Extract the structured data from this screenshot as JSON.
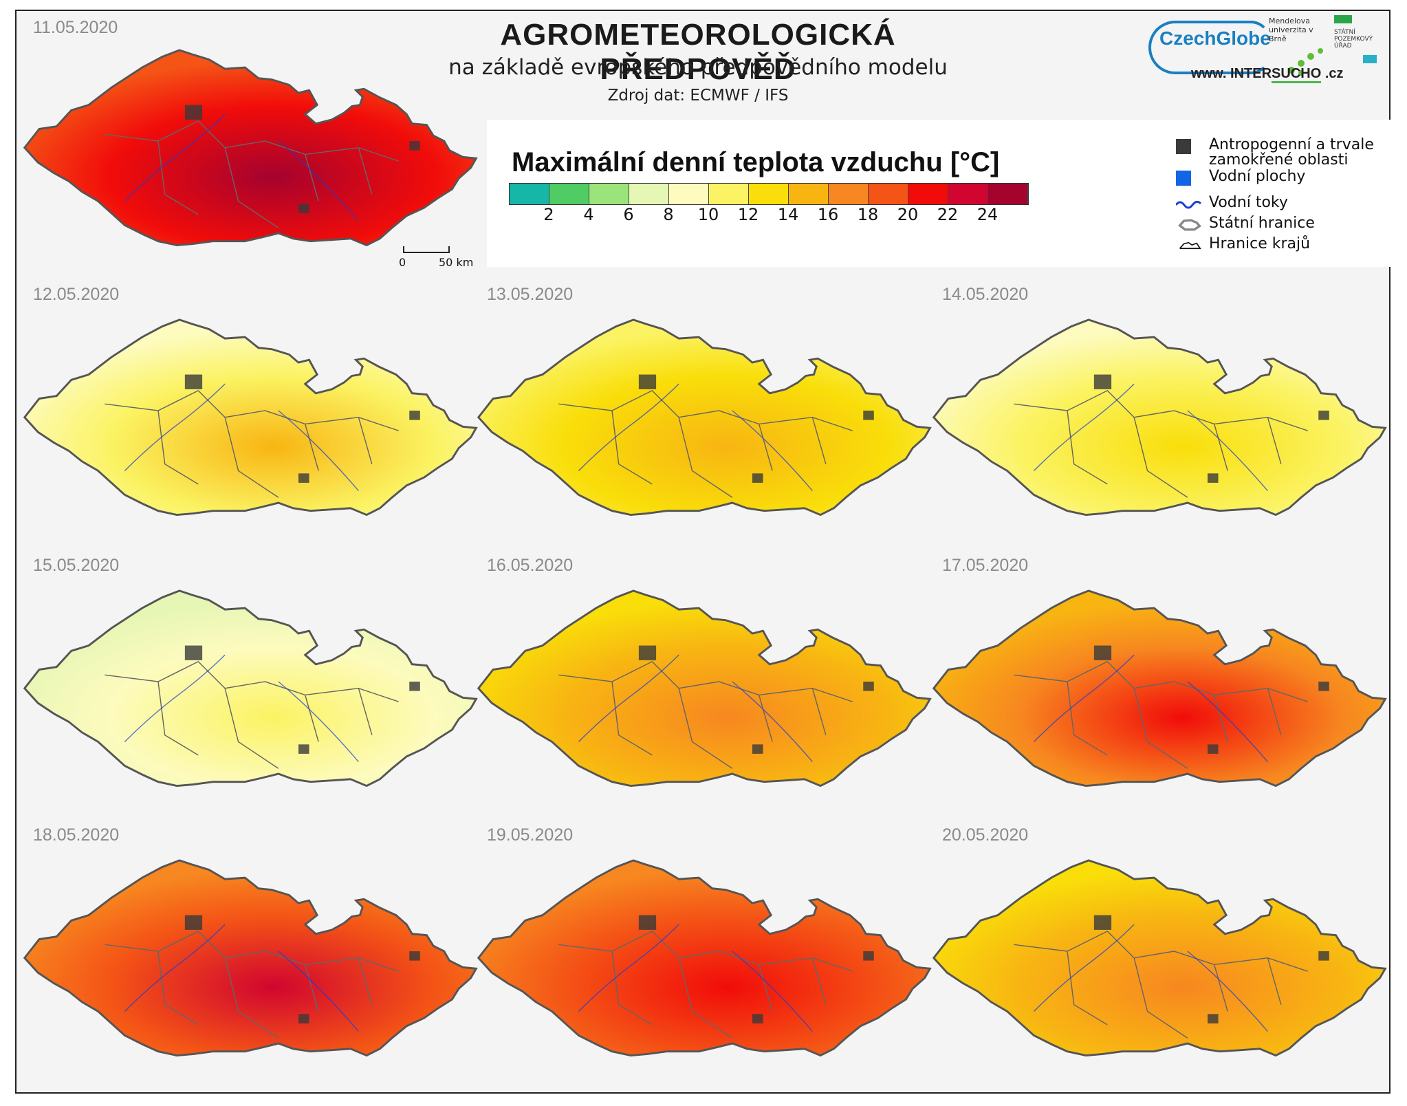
{
  "header": {
    "title": "AGROMETEOROLOGICKÁ  PŘEDPOVĚĎ",
    "subtitle": "na základě evropského předpovědního modelu",
    "source": "Zdroj dat: ECMWF / IFS"
  },
  "logos": {
    "czechglobe": "CzechGlobe",
    "mendel": "Mendelova univerzita v Brně",
    "spu": "STÁTNÍ POZEMKOVÝ ÚŘAD",
    "site_prefix": "www. INTER",
    "site_brand": "SUCHO",
    "site_suffix": " .cz"
  },
  "legend": {
    "title": "Maximální denní teplota vzduchu [°C]",
    "colors": [
      "#17b7a8",
      "#4fcc63",
      "#9be47a",
      "#e6f6b5",
      "#fdfbbe",
      "#fbf363",
      "#f9de0a",
      "#f8b512",
      "#f78720",
      "#f45416",
      "#f10c0a",
      "#d1052f",
      "#a5022e"
    ],
    "tick_labels": [
      "2",
      "4",
      "6",
      "8",
      "10",
      "12",
      "14",
      "16",
      "18",
      "20",
      "22",
      "24"
    ],
    "items": [
      {
        "label": "Antropogenní a trvale zamokřené oblasti",
        "symbol": "urban-square-icon"
      },
      {
        "label": "Vodní plochy",
        "symbol": "water-square-icon"
      },
      {
        "label": "Vodní toky",
        "symbol": "river-line-icon"
      },
      {
        "label": "Státní hranice",
        "symbol": "state-border-icon"
      },
      {
        "label": "Hranice krajů",
        "symbol": "region-border-icon"
      }
    ],
    "urban_color": "#3a3a3a",
    "water_color": "#1464e6",
    "river_color": "#1a3fd6"
  },
  "scalebar": {
    "start": "0",
    "end": "50 km"
  },
  "maps": [
    {
      "date": "11.05.2020",
      "temp_level": 21
    },
    {
      "date": "12.05.2020",
      "temp_level": 11
    },
    {
      "date": "13.05.2020",
      "temp_level": 12
    },
    {
      "date": "14.05.2020",
      "temp_level": 10
    },
    {
      "date": "15.05.2020",
      "temp_level": 8
    },
    {
      "date": "16.05.2020",
      "temp_level": 14
    },
    {
      "date": "17.05.2020",
      "temp_level": 17
    },
    {
      "date": "18.05.2020",
      "temp_level": 19
    },
    {
      "date": "19.05.2020",
      "temp_level": 18
    },
    {
      "date": "20.05.2020",
      "temp_level": 14
    }
  ]
}
